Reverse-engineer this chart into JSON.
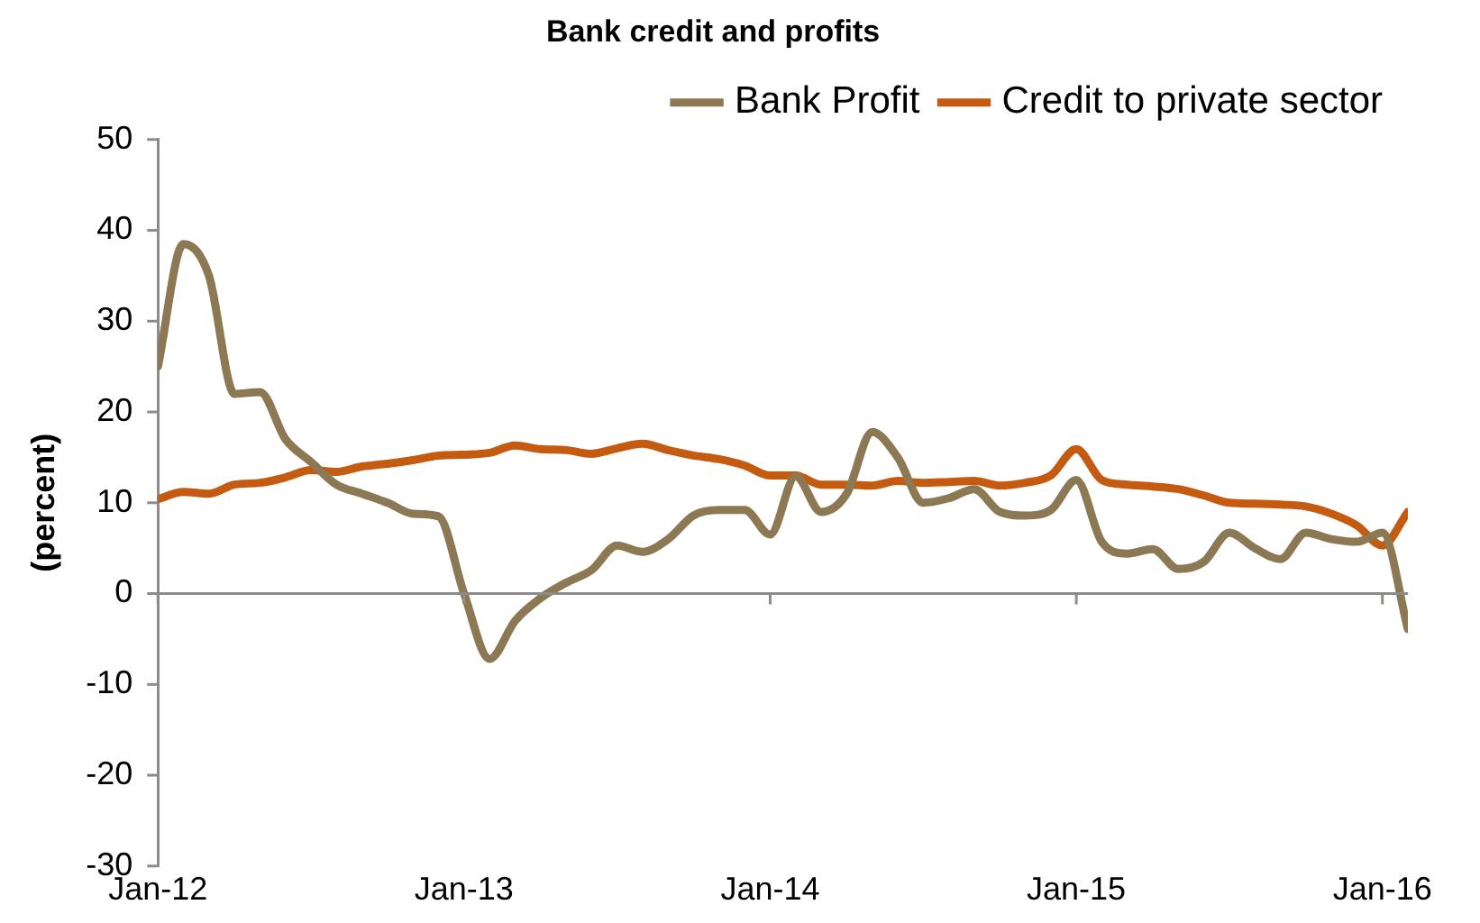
{
  "chart_data": {
    "type": "line",
    "title": "Bank credit and profits",
    "ylabel": "(percent)",
    "x": [
      "2012-01",
      "2012-02",
      "2012-03",
      "2012-04",
      "2012-05",
      "2012-06",
      "2012-07",
      "2012-08",
      "2012-09",
      "2012-10",
      "2012-11",
      "2012-12",
      "2013-01",
      "2013-02",
      "2013-03",
      "2013-04",
      "2013-05",
      "2013-06",
      "2013-07",
      "2013-08",
      "2013-09",
      "2013-10",
      "2013-11",
      "2013-12",
      "2014-01",
      "2014-02",
      "2014-03",
      "2014-04",
      "2014-05",
      "2014-06",
      "2014-07",
      "2014-08",
      "2014-09",
      "2014-10",
      "2014-11",
      "2014-12",
      "2015-01",
      "2015-02",
      "2015-03",
      "2015-04",
      "2015-05",
      "2015-06",
      "2015-07",
      "2015-08",
      "2015-09",
      "2015-10",
      "2015-11",
      "2015-12",
      "2016-01",
      "2016-02"
    ],
    "series": [
      {
        "name": "Bank Profit",
        "color": "#8c7853",
        "values": [
          25,
          38.5,
          35,
          22,
          22.2,
          17,
          14.5,
          12,
          11,
          10,
          8.8,
          8.5,
          0,
          -7.2,
          -3,
          -0.5,
          1.2,
          2.6,
          5.3,
          4.6,
          6,
          8.6,
          9.2,
          9.2,
          6.5,
          12.9,
          9,
          11,
          17.8,
          15,
          10,
          10.5,
          11.5,
          9,
          8.6,
          9.2,
          12.5,
          5.7,
          4.4,
          4.9,
          2.7,
          3.5,
          6.7,
          5,
          3.8,
          6.7,
          6,
          5.7,
          6.7,
          -3.9
        ]
      },
      {
        "name": "Credit to private sector",
        "color": "#c55a11",
        "values": [
          10.4,
          11.2,
          11,
          12,
          12.2,
          12.8,
          13.6,
          13.4,
          14,
          14.3,
          14.7,
          15.2,
          15.3,
          15.5,
          16.3,
          15.9,
          15.8,
          15.4,
          16,
          16.5,
          15.8,
          15.2,
          14.8,
          14.1,
          13,
          13,
          12,
          12,
          11.9,
          12.4,
          12.2,
          12.3,
          12.4,
          11.9,
          12.2,
          13,
          15.9,
          12.5,
          12,
          11.8,
          11.5,
          10.8,
          10,
          9.9,
          9.8,
          9.6,
          8.8,
          7.5,
          5.3,
          9
        ]
      }
    ],
    "xlim": [
      "2012-01",
      "2016-02"
    ],
    "xticks": [
      {
        "value": "2012-01",
        "label": "Jan-12"
      },
      {
        "value": "2013-01",
        "label": "Jan-13"
      },
      {
        "value": "2014-01",
        "label": "Jan-14"
      },
      {
        "value": "2015-01",
        "label": "Jan-15"
      },
      {
        "value": "2016-01",
        "label": "Jan-16"
      }
    ],
    "ylim": [
      -30,
      50
    ],
    "yticks": [
      -30,
      -20,
      -10,
      0,
      10,
      20,
      30,
      40,
      50
    ],
    "ref_lines": [
      {
        "axis": "y",
        "value": 0,
        "color": "#8c8c8c"
      }
    ],
    "grid": false,
    "legend": "top",
    "marker": "none",
    "line_style": "solid"
  }
}
